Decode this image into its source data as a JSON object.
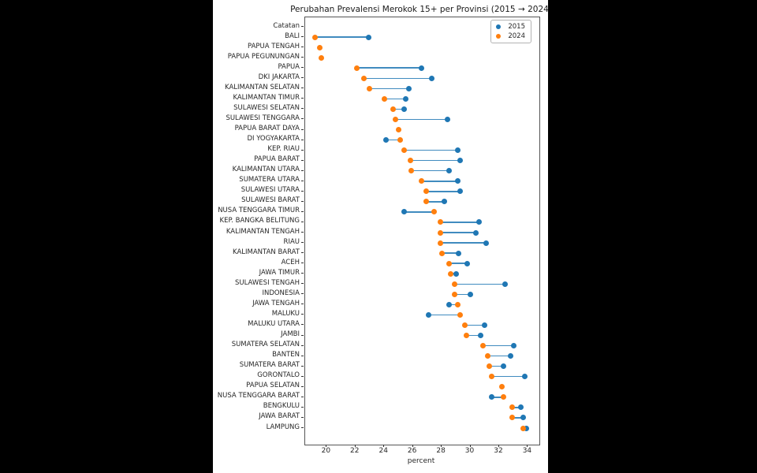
{
  "figure": {
    "background_color": "#000000",
    "canvas_color": "#ffffff"
  },
  "chart_data": {
    "type": "scatter",
    "variant": "dumbbell",
    "title": "Perubahan Prevalensi Merokok 15+ per Provinsi (2015 → 2024)",
    "xlabel": "percent",
    "ylabel": "",
    "xlim": [
      18.5,
      34.8
    ],
    "xticks": [
      20,
      22,
      24,
      26,
      28,
      30,
      32,
      34
    ],
    "grid": false,
    "legend_position": "upper right",
    "connector_color": "#1f77b4",
    "categories": [
      "Catatan",
      "BALI",
      "PAPUA TENGAH",
      "PAPUA PEGUNUNGAN",
      "PAPUA",
      "DKI JAKARTA",
      "KALIMANTAN SELATAN",
      "KALIMANTAN TIMUR",
      "SULAWESI SELATAN",
      "SULAWESI TENGGARA",
      "PAPUA BARAT DAYA",
      "DI YOGYAKARTA",
      "KEP. RIAU",
      "PAPUA BARAT",
      "KALIMANTAN UTARA",
      "SUMATERA UTARA",
      "SULAWESI UTARA",
      "SULAWESI BARAT",
      "NUSA TENGGARA TIMUR",
      "KEP. BANGKA BELITUNG",
      "KALIMANTAN TENGAH",
      "RIAU",
      "KALIMANTAN BARAT",
      "ACEH",
      "JAWA TIMUR",
      "SULAWESI TENGAH",
      "INDONESIA",
      "JAWA TENGAH",
      "MALUKU",
      "MALUKU UTARA",
      "JAMBI",
      "SUMATERA SELATAN",
      "BANTEN",
      "SUMATERA BARAT",
      "GORONTALO",
      "PAPUA SELATAN",
      "NUSA TENGGARA BARAT",
      "BENGKULU",
      "JAWA BARAT",
      "LAMPUNG"
    ],
    "series": [
      {
        "name": "2015",
        "color": "#1f77b4",
        "values": [
          null,
          22.9,
          null,
          null,
          26.6,
          27.3,
          25.7,
          25.5,
          25.4,
          28.4,
          null,
          24.1,
          29.1,
          29.3,
          28.5,
          29.1,
          29.3,
          28.2,
          25.4,
          30.6,
          30.4,
          31.1,
          29.2,
          29.8,
          29.0,
          32.4,
          30.0,
          28.5,
          27.1,
          31.0,
          30.7,
          33.0,
          32.8,
          32.3,
          33.8,
          null,
          31.5,
          33.5,
          33.7,
          33.9
        ]
      },
      {
        "name": "2024",
        "color": "#ff7f0e",
        "values": [
          null,
          19.2,
          19.5,
          19.6,
          22.1,
          22.6,
          23.0,
          24.0,
          24.6,
          24.8,
          25.0,
          25.1,
          25.4,
          25.8,
          25.9,
          26.6,
          26.9,
          26.9,
          27.5,
          27.9,
          27.9,
          27.9,
          28.0,
          28.5,
          28.6,
          28.9,
          28.9,
          29.1,
          29.3,
          29.6,
          29.7,
          30.9,
          31.2,
          31.3,
          31.5,
          32.2,
          32.3,
          32.9,
          32.9,
          33.7
        ]
      }
    ]
  }
}
